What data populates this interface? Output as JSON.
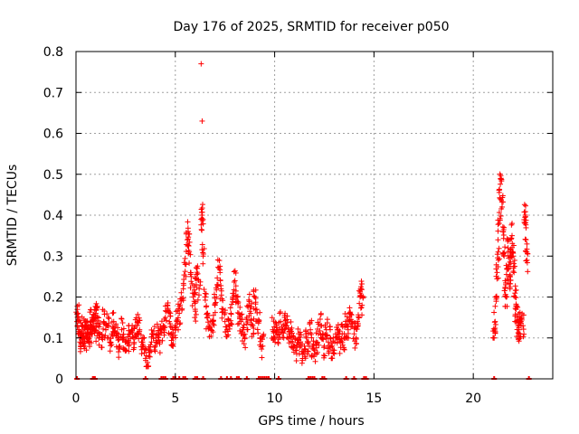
{
  "chart_data": {
    "type": "scatter",
    "title": "Day 176 of 2025, SRMTID for receiver p050",
    "xlabel": "GPS time / hours",
    "ylabel": "SRMTID / TECUs",
    "xlim": [
      0,
      24
    ],
    "ylim": [
      0,
      0.8
    ],
    "grid": true,
    "marker": "+",
    "series_color": "#ff0000",
    "x_ticks": [
      {
        "value": 0,
        "label": "0"
      },
      {
        "value": 5,
        "label": "5"
      },
      {
        "value": 10,
        "label": "10"
      },
      {
        "value": 15,
        "label": "15"
      },
      {
        "value": 20,
        "label": "20"
      }
    ],
    "y_ticks": [
      {
        "value": 0,
        "label": "0"
      },
      {
        "value": 0.1,
        "label": "0.1"
      },
      {
        "value": 0.2,
        "label": "0.2"
      },
      {
        "value": 0.3,
        "label": "0.3"
      },
      {
        "value": 0.4,
        "label": "0.4"
      },
      {
        "value": 0.5,
        "label": "0.5"
      },
      {
        "value": 0.6,
        "label": "0.6"
      },
      {
        "value": 0.7,
        "label": "0.7"
      },
      {
        "value": 0.8,
        "label": "0.8"
      }
    ],
    "points": [
      [
        0.05,
        0.14
      ],
      [
        0.1,
        0.16
      ],
      [
        0.15,
        0.12
      ],
      [
        0.2,
        0.09
      ],
      [
        0.25,
        0.11
      ],
      [
        0.3,
        0.13
      ],
      [
        0.35,
        0.1
      ],
      [
        0.4,
        0.08
      ],
      [
        0.45,
        0.12
      ],
      [
        0.5,
        0.11
      ],
      [
        0.55,
        0.1
      ],
      [
        0.6,
        0.13
      ],
      [
        0.65,
        0.09
      ],
      [
        0.7,
        0.12
      ],
      [
        0.75,
        0.14
      ],
      [
        0.8,
        0.11
      ],
      [
        0.85,
        0.15
      ],
      [
        0.9,
        0.13
      ],
      [
        0.95,
        0.12
      ],
      [
        1.0,
        0.16
      ],
      [
        1.05,
        0.15
      ],
      [
        1.1,
        0.13
      ],
      [
        1.2,
        0.11
      ],
      [
        1.3,
        0.1
      ],
      [
        1.4,
        0.14
      ],
      [
        1.5,
        0.12
      ],
      [
        1.6,
        0.13
      ],
      [
        1.7,
        0.09
      ],
      [
        1.8,
        0.11
      ],
      [
        1.9,
        0.14
      ],
      [
        2.0,
        0.13
      ],
      [
        2.1,
        0.1
      ],
      [
        2.2,
        0.08
      ],
      [
        2.3,
        0.12
      ],
      [
        2.4,
        0.1
      ],
      [
        2.5,
        0.07
      ],
      [
        2.6,
        0.09
      ],
      [
        2.7,
        0.11
      ],
      [
        2.8,
        0.12
      ],
      [
        2.9,
        0.1
      ],
      [
        3.0,
        0.13
      ],
      [
        3.1,
        0.14
      ],
      [
        3.2,
        0.12
      ],
      [
        3.3,
        0.09
      ],
      [
        3.4,
        0.08
      ],
      [
        3.5,
        0.05
      ],
      [
        3.6,
        0.04
      ],
      [
        3.7,
        0.07
      ],
      [
        3.8,
        0.09
      ],
      [
        3.9,
        0.1
      ],
      [
        4.0,
        0.08
      ],
      [
        4.1,
        0.11
      ],
      [
        4.2,
        0.09
      ],
      [
        4.3,
        0.12
      ],
      [
        4.4,
        0.13
      ],
      [
        4.5,
        0.15
      ],
      [
        4.6,
        0.18
      ],
      [
        4.7,
        0.14
      ],
      [
        4.8,
        0.11
      ],
      [
        4.9,
        0.1
      ],
      [
        5.0,
        0.12
      ],
      [
        5.1,
        0.14
      ],
      [
        5.2,
        0.16
      ],
      [
        5.3,
        0.19
      ],
      [
        5.4,
        0.22
      ],
      [
        5.5,
        0.28
      ],
      [
        5.6,
        0.34
      ],
      [
        5.65,
        0.36
      ],
      [
        5.7,
        0.31
      ],
      [
        5.8,
        0.25
      ],
      [
        5.9,
        0.2
      ],
      [
        6.0,
        0.17
      ],
      [
        6.05,
        0.23
      ],
      [
        6.1,
        0.27
      ],
      [
        6.2,
        0.22
      ],
      [
        6.3,
        0.39
      ],
      [
        6.35,
        0.4
      ],
      [
        6.4,
        0.3
      ],
      [
        6.5,
        0.2
      ],
      [
        6.6,
        0.15
      ],
      [
        6.7,
        0.13
      ],
      [
        6.8,
        0.12
      ],
      [
        6.9,
        0.14
      ],
      [
        7.0,
        0.18
      ],
      [
        7.1,
        0.23
      ],
      [
        7.2,
        0.27
      ],
      [
        7.3,
        0.22
      ],
      [
        7.4,
        0.17
      ],
      [
        7.5,
        0.14
      ],
      [
        7.6,
        0.12
      ],
      [
        7.7,
        0.13
      ],
      [
        7.8,
        0.16
      ],
      [
        7.9,
        0.2
      ],
      [
        8.0,
        0.24
      ],
      [
        8.1,
        0.2
      ],
      [
        8.2,
        0.16
      ],
      [
        8.3,
        0.14
      ],
      [
        8.4,
        0.12
      ],
      [
        8.5,
        0.1
      ],
      [
        8.6,
        0.15
      ],
      [
        8.7,
        0.18
      ],
      [
        8.8,
        0.16
      ],
      [
        8.9,
        0.13
      ],
      [
        9.0,
        0.2
      ],
      [
        9.1,
        0.17
      ],
      [
        9.2,
        0.14
      ],
      [
        9.3,
        0.1
      ],
      [
        9.4,
        0.08
      ],
      [
        9.9,
        0.12
      ],
      [
        10.0,
        0.1
      ],
      [
        10.1,
        0.13
      ],
      [
        10.2,
        0.11
      ],
      [
        10.3,
        0.14
      ],
      [
        10.4,
        0.12
      ],
      [
        10.5,
        0.15
      ],
      [
        10.6,
        0.13
      ],
      [
        10.7,
        0.1
      ],
      [
        10.8,
        0.12
      ],
      [
        10.9,
        0.09
      ],
      [
        11.0,
        0.08
      ],
      [
        11.1,
        0.07
      ],
      [
        11.2,
        0.1
      ],
      [
        11.3,
        0.09
      ],
      [
        11.4,
        0.06
      ],
      [
        11.5,
        0.08
      ],
      [
        11.6,
        0.1
      ],
      [
        11.7,
        0.09
      ],
      [
        11.8,
        0.12
      ],
      [
        11.9,
        0.08
      ],
      [
        12.0,
        0.07
      ],
      [
        12.1,
        0.09
      ],
      [
        12.2,
        0.11
      ],
      [
        12.3,
        0.13
      ],
      [
        12.4,
        0.1
      ],
      [
        12.5,
        0.08
      ],
      [
        12.6,
        0.12
      ],
      [
        12.7,
        0.09
      ],
      [
        12.8,
        0.1
      ],
      [
        12.9,
        0.08
      ],
      [
        13.0,
        0.07
      ],
      [
        13.1,
        0.1
      ],
      [
        13.2,
        0.12
      ],
      [
        13.3,
        0.09
      ],
      [
        13.4,
        0.11
      ],
      [
        13.5,
        0.1
      ],
      [
        13.6,
        0.13
      ],
      [
        13.7,
        0.12
      ],
      [
        13.8,
        0.16
      ],
      [
        13.9,
        0.14
      ],
      [
        14.0,
        0.11
      ],
      [
        14.1,
        0.1
      ],
      [
        14.2,
        0.13
      ],
      [
        14.3,
        0.2
      ],
      [
        14.35,
        0.22
      ],
      [
        14.4,
        0.18
      ],
      [
        21.05,
        0.1
      ],
      [
        21.1,
        0.14
      ],
      [
        21.15,
        0.2
      ],
      [
        21.2,
        0.26
      ],
      [
        21.25,
        0.31
      ],
      [
        21.3,
        0.38
      ],
      [
        21.35,
        0.44
      ],
      [
        21.4,
        0.49
      ],
      [
        21.45,
        0.42
      ],
      [
        21.5,
        0.36
      ],
      [
        21.55,
        0.3
      ],
      [
        21.6,
        0.24
      ],
      [
        21.65,
        0.2
      ],
      [
        21.7,
        0.27
      ],
      [
        21.75,
        0.32
      ],
      [
        21.8,
        0.28
      ],
      [
        21.85,
        0.22
      ],
      [
        21.9,
        0.3
      ],
      [
        21.95,
        0.35
      ],
      [
        22.0,
        0.3
      ],
      [
        22.05,
        0.26
      ],
      [
        22.1,
        0.2
      ],
      [
        22.15,
        0.17
      ],
      [
        22.2,
        0.15
      ],
      [
        22.25,
        0.13
      ],
      [
        22.3,
        0.12
      ],
      [
        22.35,
        0.11
      ],
      [
        22.4,
        0.14
      ],
      [
        22.5,
        0.13
      ],
      [
        22.6,
        0.38
      ],
      [
        22.62,
        0.4
      ],
      [
        22.65,
        0.34
      ],
      [
        22.7,
        0.29
      ]
    ],
    "outliers": [
      [
        6.3,
        0.77
      ],
      [
        6.35,
        0.63
      ]
    ],
    "zero_points": [
      0.05,
      0.85,
      0.9,
      0.95,
      3.5,
      4.3,
      4.4,
      4.5,
      4.9,
      5.0,
      5.2,
      5.4,
      5.5,
      6.0,
      6.1,
      6.4,
      7.3,
      7.6,
      7.8,
      8.1,
      8.2,
      8.6,
      9.2,
      9.3,
      9.4,
      9.5,
      9.6,
      9.7,
      10.2,
      11.7,
      11.8,
      11.9,
      12.0,
      12.4,
      12.5,
      13.6,
      14.0,
      14.5,
      14.6,
      21.05,
      22.8
    ]
  }
}
